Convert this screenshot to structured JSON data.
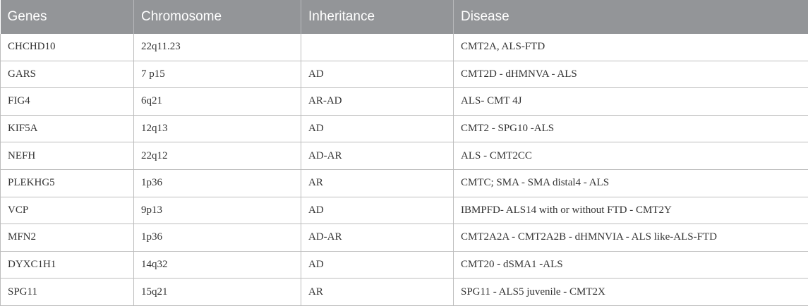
{
  "table": {
    "headers": [
      "Genes",
      "Chromosome",
      "Inheritance",
      "Disease"
    ],
    "rows": [
      [
        "CHCHD10",
        "22q11.23",
        "",
        "CMT2A, ALS-FTD"
      ],
      [
        "GARS",
        "7 p15",
        "AD",
        "CMT2D - dHMNVA - ALS"
      ],
      [
        "FIG4",
        "6q21",
        "AR-AD",
        "ALS- CMT 4J"
      ],
      [
        "KIF5A",
        "12q13",
        "AD",
        "CMT2 - SPG10 -ALS"
      ],
      [
        "NEFH",
        "22q12",
        "AD-AR",
        "ALS - CMT2CC"
      ],
      [
        "PLEKHG5",
        "1p36",
        "AR",
        "CMTC; SMA - SMA distal4 - ALS"
      ],
      [
        "VCP",
        "9p13",
        "AD",
        "IBMPFD- ALS14 with or without FTD - CMT2Y"
      ],
      [
        "MFN2",
        "1p36",
        "AD-AR",
        "CMT2A2A - CMT2A2B - dHMNVIA - ALS like-ALS-FTD"
      ],
      [
        "DYXC1H1",
        "14q32",
        "AD",
        "CMT20 - dSMA1 -ALS"
      ],
      [
        "SPG11",
        "15q21",
        "AR",
        "SPG11 - ALS5 juvenile - CMT2X"
      ]
    ]
  }
}
